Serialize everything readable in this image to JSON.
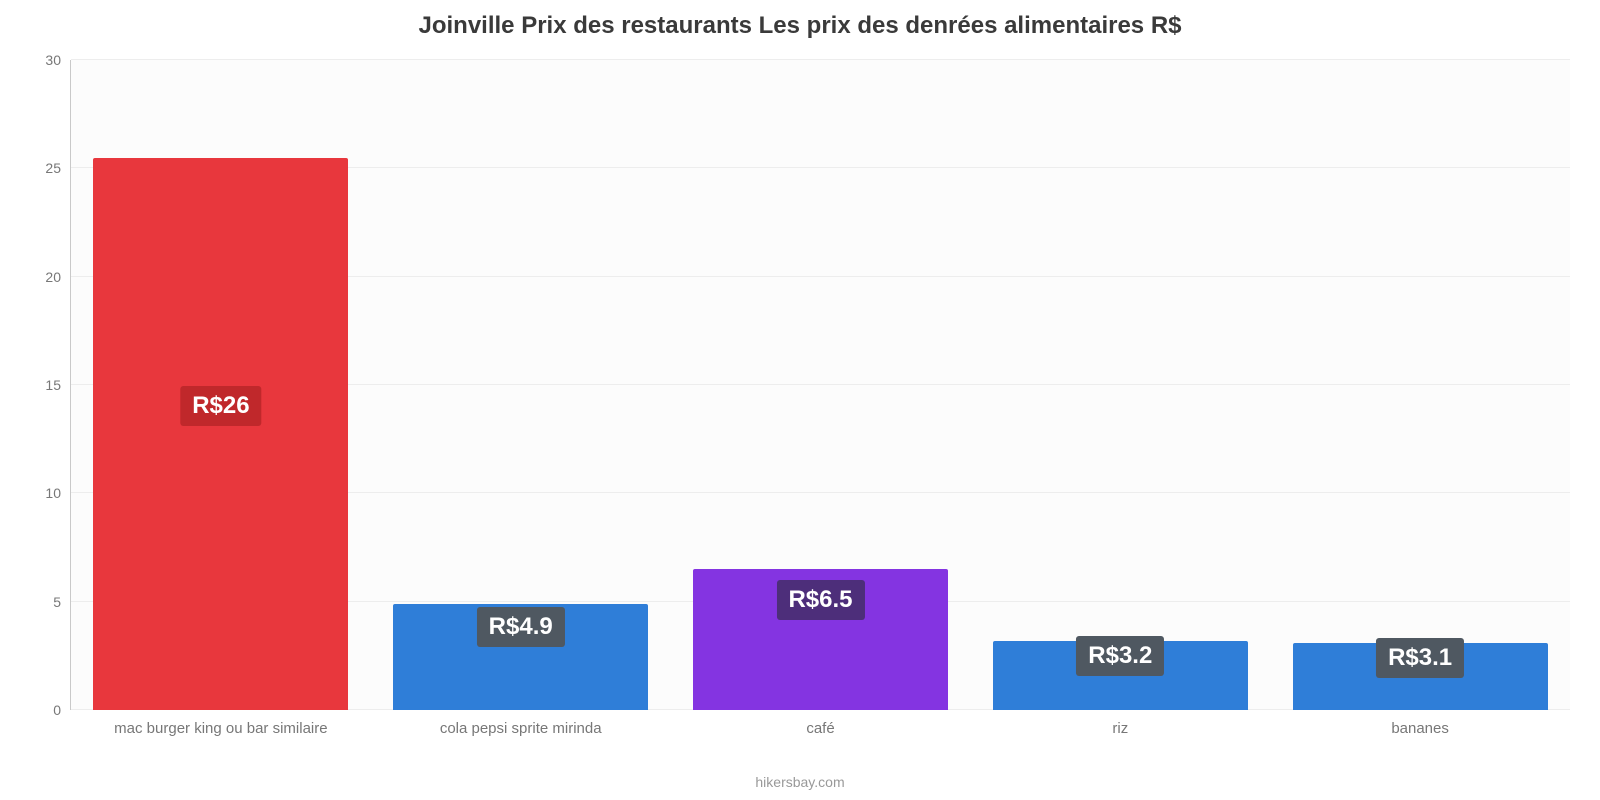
{
  "chart": {
    "type": "bar",
    "title": "Joinville Prix des restaurants Les prix des denrées alimentaires R$",
    "title_fontsize": 24,
    "title_color": "#3a3a3a",
    "background_color": "#fcfcfc",
    "axis_color": "#c9c9c9",
    "grid_color": "#ededed",
    "tick_label_color": "#777777",
    "tick_fontsize": 14,
    "x_label_fontsize": 15,
    "y": {
      "min": 0,
      "max": 30,
      "step": 5,
      "ticks": [
        0,
        5,
        10,
        15,
        20,
        25,
        30
      ]
    },
    "bar_width_pct": 17,
    "bars": [
      {
        "category": "mac burger king ou bar similaire",
        "value": 25.5,
        "value_label": "R$26",
        "color": "#e8373d",
        "badge_color": "#c0282b"
      },
      {
        "category": "cola pepsi sprite mirinda",
        "value": 4.9,
        "value_label": "R$4.9",
        "color": "#2f7ed8",
        "badge_color": "#4f5861"
      },
      {
        "category": "café",
        "value": 6.5,
        "value_label": "R$6.5",
        "color": "#8434e1",
        "badge_color": "#4d2e7a"
      },
      {
        "category": "riz",
        "value": 3.2,
        "value_label": "R$3.2",
        "color": "#2f7ed8",
        "badge_color": "#4f5861"
      },
      {
        "category": "bananes",
        "value": 3.1,
        "value_label": "R$3.1",
        "color": "#2f7ed8",
        "badge_color": "#4f5861"
      }
    ],
    "value_label_fontsize": 24,
    "credit": "hikersbay.com",
    "credit_color": "#999999",
    "credit_fontsize": 14
  }
}
